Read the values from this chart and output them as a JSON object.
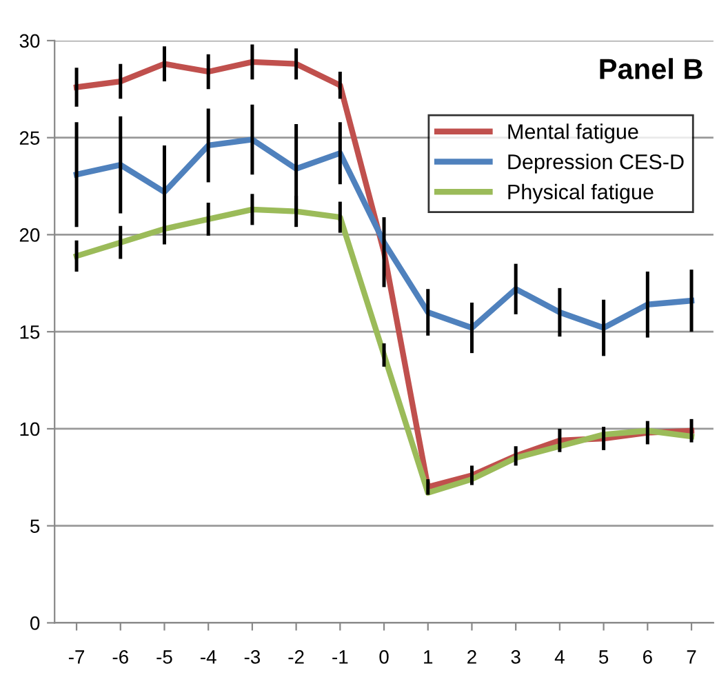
{
  "chart_data": {
    "type": "line",
    "title": "Panel B",
    "x": [
      -7,
      -6,
      -5,
      -4,
      -3,
      -2,
      -1,
      0,
      1,
      2,
      3,
      4,
      5,
      6,
      7
    ],
    "xlim": [
      -7.5,
      7.5
    ],
    "xticks": [
      -7,
      -6,
      -5,
      -4,
      -3,
      -2,
      -1,
      0,
      1,
      2,
      3,
      4,
      5,
      6,
      7
    ],
    "ylim": [
      0,
      30
    ],
    "yticks": [
      0,
      5,
      10,
      15,
      20,
      25,
      30
    ],
    "grid": "y",
    "legend": "top right",
    "marker": "none",
    "line_style": "solid",
    "series": [
      {
        "name": "Mental fatigue",
        "color": "#c0504d",
        "values": [
          27.6,
          27.9,
          28.8,
          28.4,
          28.9,
          28.8,
          27.7,
          19.1,
          7.0,
          7.6,
          8.6,
          9.4,
          9.5,
          9.8,
          9.9
        ],
        "errors": [
          1.0,
          0.9,
          0.9,
          0.9,
          0.9,
          0.8,
          0.7,
          1.8,
          0.4,
          0.5,
          0.5,
          0.6,
          0.6,
          0.6,
          0.6
        ]
      },
      {
        "name": "Depression CES-D",
        "color": "#4f81bd",
        "values": [
          23.1,
          23.6,
          22.2,
          24.6,
          24.9,
          23.4,
          24.2,
          19.6,
          16.0,
          15.2,
          17.2,
          16.0,
          15.2,
          16.4,
          16.6
        ],
        "errors": [
          2.7,
          2.5,
          2.4,
          1.9,
          1.8,
          2.3,
          1.6,
          null,
          1.2,
          1.3,
          1.3,
          1.25,
          1.45,
          1.7,
          1.6
        ]
      },
      {
        "name": "Physical fatigue",
        "color": "#9bbb59",
        "values": [
          18.9,
          19.6,
          20.3,
          20.8,
          21.3,
          21.2,
          20.9,
          13.8,
          6.7,
          7.4,
          8.5,
          9.1,
          9.7,
          9.9,
          9.6
        ],
        "errors": [
          0.8,
          0.85,
          0.8,
          0.85,
          0.8,
          0.8,
          0.8,
          0.6,
          null,
          null,
          null,
          null,
          null,
          null,
          null
        ]
      }
    ]
  }
}
